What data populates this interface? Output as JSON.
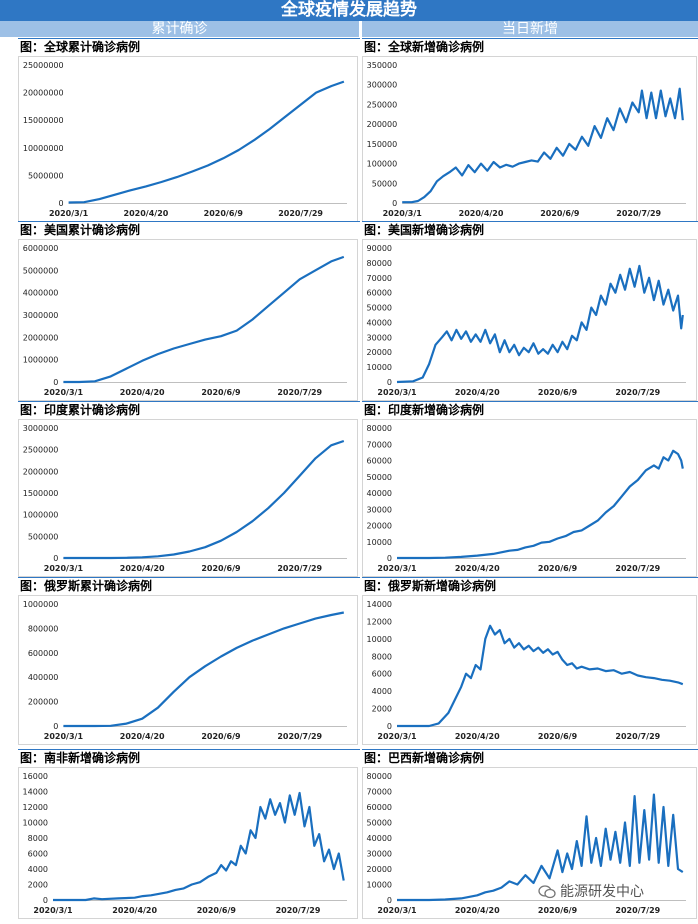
{
  "header": {
    "title": "全球疫情发展趋势",
    "left_sub": "累计确诊",
    "right_sub": "当日新增"
  },
  "watermark": "能源研发中心",
  "colors": {
    "line": "#1a6fbf",
    "accent": "#2f77c4",
    "subhead": "#9dc0e6"
  },
  "chart_data": [
    {
      "id": "global_cum",
      "type": "line",
      "title": "图：全球累计确诊病例",
      "ylim": [
        0,
        25000000
      ],
      "yticks": [
        0,
        5000000,
        10000000,
        15000000,
        20000000,
        25000000
      ],
      "xticks": [
        "2020/3/1",
        "2020/4/20",
        "2020/6/9",
        "2020/7/29"
      ],
      "x": [
        0,
        10,
        20,
        30,
        40,
        50,
        60,
        70,
        80,
        90,
        100,
        110,
        120,
        130,
        140,
        150,
        160,
        170,
        178
      ],
      "values": [
        85000,
        140000,
        700000,
        1500000,
        2300000,
        3000000,
        3800000,
        4700000,
        5700000,
        6800000,
        8100000,
        9600000,
        11400000,
        13400000,
        15600000,
        17800000,
        20000000,
        21200000,
        22000000
      ]
    },
    {
      "id": "global_new",
      "type": "line",
      "title": "图：全球新增确诊病例",
      "ylim": [
        0,
        350000
      ],
      "yticks": [
        0,
        50000,
        100000,
        150000,
        200000,
        250000,
        300000,
        350000
      ],
      "xticks": [
        "2020/3/1",
        "2020/4/20",
        "2020/6/9",
        "2020/7/29"
      ],
      "x": [
        0,
        6,
        10,
        14,
        18,
        22,
        26,
        30,
        34,
        38,
        42,
        46,
        50,
        54,
        58,
        62,
        66,
        70,
        74,
        78,
        82,
        86,
        90,
        94,
        98,
        102,
        106,
        110,
        114,
        118,
        122,
        126,
        130,
        134,
        138,
        142,
        146,
        150,
        152,
        155,
        158,
        161,
        164,
        167,
        170,
        173,
        176,
        178
      ],
      "values": [
        2000,
        2000,
        5000,
        15000,
        30000,
        55000,
        68000,
        78000,
        90000,
        70000,
        96000,
        78000,
        100000,
        82000,
        104000,
        90000,
        97000,
        92000,
        100000,
        104000,
        108000,
        105000,
        128000,
        112000,
        140000,
        120000,
        150000,
        135000,
        168000,
        145000,
        195000,
        165000,
        215000,
        185000,
        240000,
        205000,
        255000,
        230000,
        285000,
        215000,
        280000,
        215000,
        285000,
        220000,
        265000,
        215000,
        290000,
        210000
      ]
    },
    {
      "id": "us_cum",
      "type": "line",
      "title": "图：美国累计确诊病例",
      "ylim": [
        0,
        6000000
      ],
      "yticks": [
        0,
        1000000,
        2000000,
        3000000,
        4000000,
        5000000,
        6000000
      ],
      "xticks": [
        "2020/3/1",
        "2020/4/20",
        "2020/6/9",
        "2020/7/29"
      ],
      "x": [
        0,
        10,
        20,
        30,
        40,
        50,
        60,
        70,
        80,
        90,
        100,
        110,
        120,
        130,
        140,
        150,
        160,
        170,
        178
      ],
      "values": [
        0,
        0,
        30000,
        250000,
        600000,
        950000,
        1250000,
        1500000,
        1700000,
        1900000,
        2050000,
        2300000,
        2800000,
        3400000,
        4000000,
        4600000,
        5000000,
        5400000,
        5600000
      ]
    },
    {
      "id": "us_new",
      "type": "line",
      "title": "图：美国新增确诊病例",
      "ylim": [
        0,
        90000
      ],
      "yticks": [
        0,
        10000,
        20000,
        30000,
        40000,
        50000,
        60000,
        70000,
        80000,
        90000
      ],
      "xticks": [
        "2020/3/1",
        "2020/4/20",
        "2020/6/9",
        "2020/7/29"
      ],
      "x": [
        0,
        10,
        16,
        20,
        24,
        28,
        31,
        34,
        37,
        40,
        43,
        46,
        49,
        52,
        55,
        58,
        61,
        64,
        67,
        70,
        73,
        76,
        79,
        82,
        85,
        88,
        91,
        94,
        97,
        100,
        103,
        106,
        109,
        112,
        115,
        118,
        121,
        124,
        127,
        130,
        133,
        136,
        139,
        142,
        145,
        148,
        151,
        154,
        157,
        160,
        163,
        166,
        169,
        172,
        175,
        177,
        178
      ],
      "values": [
        0,
        500,
        3000,
        12000,
        25000,
        30000,
        34000,
        28000,
        35000,
        29000,
        34000,
        27000,
        32000,
        27000,
        35000,
        26000,
        32000,
        20000,
        28000,
        20000,
        25000,
        18000,
        23000,
        20000,
        26000,
        19000,
        22000,
        19000,
        25000,
        20000,
        27000,
        22000,
        31000,
        28000,
        40000,
        35000,
        50000,
        45000,
        58000,
        52000,
        66000,
        60000,
        72000,
        62000,
        76000,
        64000,
        78000,
        60000,
        70000,
        55000,
        68000,
        52000,
        62000,
        48000,
        58000,
        36000,
        45000
      ]
    },
    {
      "id": "india_cum",
      "type": "line",
      "title": "图：印度累计确诊病例",
      "ylim": [
        0,
        3000000
      ],
      "yticks": [
        0,
        500000,
        1000000,
        1500000,
        2000000,
        2500000,
        3000000
      ],
      "xticks": [
        "2020/3/1",
        "2020/4/20",
        "2020/6/9",
        "2020/7/29"
      ],
      "x": [
        0,
        10,
        20,
        30,
        40,
        50,
        60,
        70,
        80,
        90,
        100,
        110,
        120,
        130,
        140,
        150,
        160,
        170,
        178
      ],
      "values": [
        0,
        0,
        0,
        1000,
        5000,
        15000,
        40000,
        80000,
        150000,
        250000,
        400000,
        600000,
        850000,
        1150000,
        1500000,
        1900000,
        2300000,
        2600000,
        2700000
      ]
    },
    {
      "id": "india_new",
      "type": "line",
      "title": "图：印度新增确诊病例",
      "ylim": [
        0,
        80000
      ],
      "yticks": [
        0,
        10000,
        20000,
        30000,
        40000,
        50000,
        60000,
        70000,
        80000
      ],
      "xticks": [
        "2020/3/1",
        "2020/4/20",
        "2020/6/9",
        "2020/7/29"
      ],
      "x": [
        0,
        20,
        30,
        40,
        50,
        60,
        70,
        75,
        80,
        85,
        90,
        95,
        100,
        105,
        110,
        115,
        120,
        125,
        130,
        135,
        140,
        145,
        150,
        155,
        160,
        163,
        166,
        169,
        172,
        175,
        177,
        178
      ],
      "values": [
        0,
        0,
        200,
        700,
        1500,
        2500,
        4500,
        5000,
        6500,
        7500,
        9500,
        10000,
        12000,
        13500,
        16000,
        17000,
        20000,
        23000,
        28000,
        32000,
        38000,
        44000,
        48000,
        54000,
        57000,
        55000,
        62000,
        60000,
        66000,
        64000,
        60000,
        55000
      ]
    },
    {
      "id": "russia_cum",
      "type": "line",
      "title": "图：俄罗斯累计确诊病例",
      "ylim": [
        0,
        1000000
      ],
      "yticks": [
        0,
        200000,
        400000,
        600000,
        800000,
        1000000
      ],
      "xticks": [
        "2020/3/1",
        "2020/4/20",
        "2020/6/9",
        "2020/7/29"
      ],
      "x": [
        0,
        10,
        20,
        30,
        40,
        50,
        60,
        70,
        80,
        90,
        100,
        110,
        120,
        130,
        140,
        150,
        160,
        170,
        178
      ],
      "values": [
        0,
        0,
        0,
        2000,
        20000,
        60000,
        150000,
        280000,
        400000,
        490000,
        570000,
        640000,
        700000,
        750000,
        800000,
        840000,
        880000,
        910000,
        930000
      ]
    },
    {
      "id": "russia_new",
      "type": "line",
      "title": "图：俄罗斯新增确诊病例",
      "ylim": [
        0,
        14000
      ],
      "yticks": [
        0,
        2000,
        4000,
        6000,
        8000,
        10000,
        12000,
        14000
      ],
      "xticks": [
        "2020/3/1",
        "2020/4/20",
        "2020/6/9",
        "2020/7/29"
      ],
      "x": [
        0,
        20,
        26,
        32,
        36,
        40,
        43,
        46,
        49,
        52,
        55,
        58,
        61,
        64,
        67,
        70,
        73,
        76,
        79,
        82,
        85,
        88,
        91,
        94,
        97,
        100,
        103,
        106,
        109,
        112,
        115,
        120,
        125,
        130,
        135,
        140,
        145,
        150,
        155,
        160,
        165,
        170,
        175,
        178
      ],
      "values": [
        0,
        0,
        300,
        1500,
        3000,
        4500,
        6000,
        5500,
        7000,
        6500,
        10000,
        11500,
        10500,
        11000,
        9500,
        10000,
        9000,
        9500,
        8800,
        9200,
        8600,
        9000,
        8400,
        8800,
        8200,
        8500,
        7600,
        7000,
        7200,
        6600,
        6800,
        6500,
        6600,
        6300,
        6400,
        6000,
        6200,
        5800,
        5600,
        5500,
        5300,
        5200,
        5000,
        4800
      ]
    },
    {
      "id": "sa_new",
      "type": "line",
      "title": "图：南非新增确诊病例",
      "ylim": [
        0,
        16000
      ],
      "yticks": [
        0,
        2000,
        4000,
        6000,
        8000,
        10000,
        12000,
        14000,
        16000
      ],
      "xticks": [
        "2020/3/1",
        "2020/4/20",
        "2020/6/9",
        "2020/7/29"
      ],
      "x": [
        0,
        20,
        25,
        30,
        40,
        50,
        55,
        60,
        65,
        70,
        75,
        80,
        85,
        90,
        95,
        100,
        103,
        106,
        109,
        112,
        115,
        118,
        121,
        124,
        127,
        130,
        133,
        136,
        139,
        142,
        145,
        148,
        151,
        154,
        157,
        160,
        163,
        166,
        169,
        172,
        175,
        178
      ],
      "values": [
        0,
        0,
        200,
        100,
        200,
        300,
        500,
        600,
        800,
        1000,
        1300,
        1500,
        2000,
        2300,
        3000,
        3500,
        4500,
        3800,
        5000,
        4500,
        7000,
        6000,
        9000,
        8000,
        12000,
        10500,
        13000,
        11000,
        12500,
        10000,
        13500,
        11000,
        13800,
        9500,
        12000,
        7000,
        8500,
        5000,
        6500,
        4000,
        6000,
        2500
      ]
    },
    {
      "id": "brazil_new",
      "type": "line",
      "title": "图：巴西新增确诊病例",
      "ylim": [
        0,
        80000
      ],
      "yticks": [
        0,
        10000,
        20000,
        30000,
        40000,
        50000,
        60000,
        70000,
        80000
      ],
      "xticks": [
        "2020/3/1",
        "2020/4/20",
        "2020/6/9",
        "2020/7/29"
      ],
      "x": [
        0,
        20,
        30,
        40,
        50,
        55,
        60,
        65,
        70,
        75,
        80,
        85,
        90,
        95,
        100,
        103,
        106,
        109,
        112,
        115,
        118,
        121,
        124,
        127,
        130,
        133,
        136,
        139,
        142,
        145,
        148,
        151,
        154,
        157,
        160,
        163,
        166,
        169,
        172,
        175,
        178
      ],
      "values": [
        0,
        0,
        300,
        1000,
        3000,
        5000,
        6000,
        8000,
        12000,
        10000,
        16000,
        11000,
        22000,
        14000,
        32000,
        18000,
        30000,
        20000,
        38000,
        22000,
        54000,
        24000,
        40000,
        22000,
        46000,
        26000,
        44000,
        24000,
        50000,
        22000,
        67000,
        24000,
        58000,
        26000,
        68000,
        24000,
        60000,
        22000,
        55000,
        20000,
        18000
      ]
    }
  ]
}
